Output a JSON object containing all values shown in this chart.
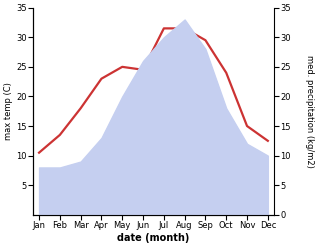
{
  "months": [
    "Jan",
    "Feb",
    "Mar",
    "Apr",
    "May",
    "Jun",
    "Jul",
    "Aug",
    "Sep",
    "Oct",
    "Nov",
    "Dec"
  ],
  "temp": [
    10.5,
    13.5,
    18,
    23,
    25,
    24.5,
    31.5,
    31.5,
    29.5,
    24,
    15,
    12.5
  ],
  "precip": [
    8,
    8,
    9,
    13,
    20,
    26,
    30,
    33,
    28,
    18,
    12,
    10
  ],
  "temp_ylim": [
    0,
    35
  ],
  "precip_ylim": [
    0,
    35
  ],
  "temp_color": "#cc3333",
  "precip_fill_color": "#c5cff0",
  "xlabel": "date (month)",
  "ylabel_left": "max temp (C)",
  "ylabel_right": "med. precipitation (kg/m2)",
  "yticks": [
    5,
    10,
    15,
    20,
    25,
    30,
    35
  ],
  "right_yticks": [
    0,
    5,
    10,
    15,
    20,
    25,
    30,
    35
  ],
  "temp_linewidth": 1.6,
  "figsize": [
    3.18,
    2.47
  ],
  "dpi": 100
}
